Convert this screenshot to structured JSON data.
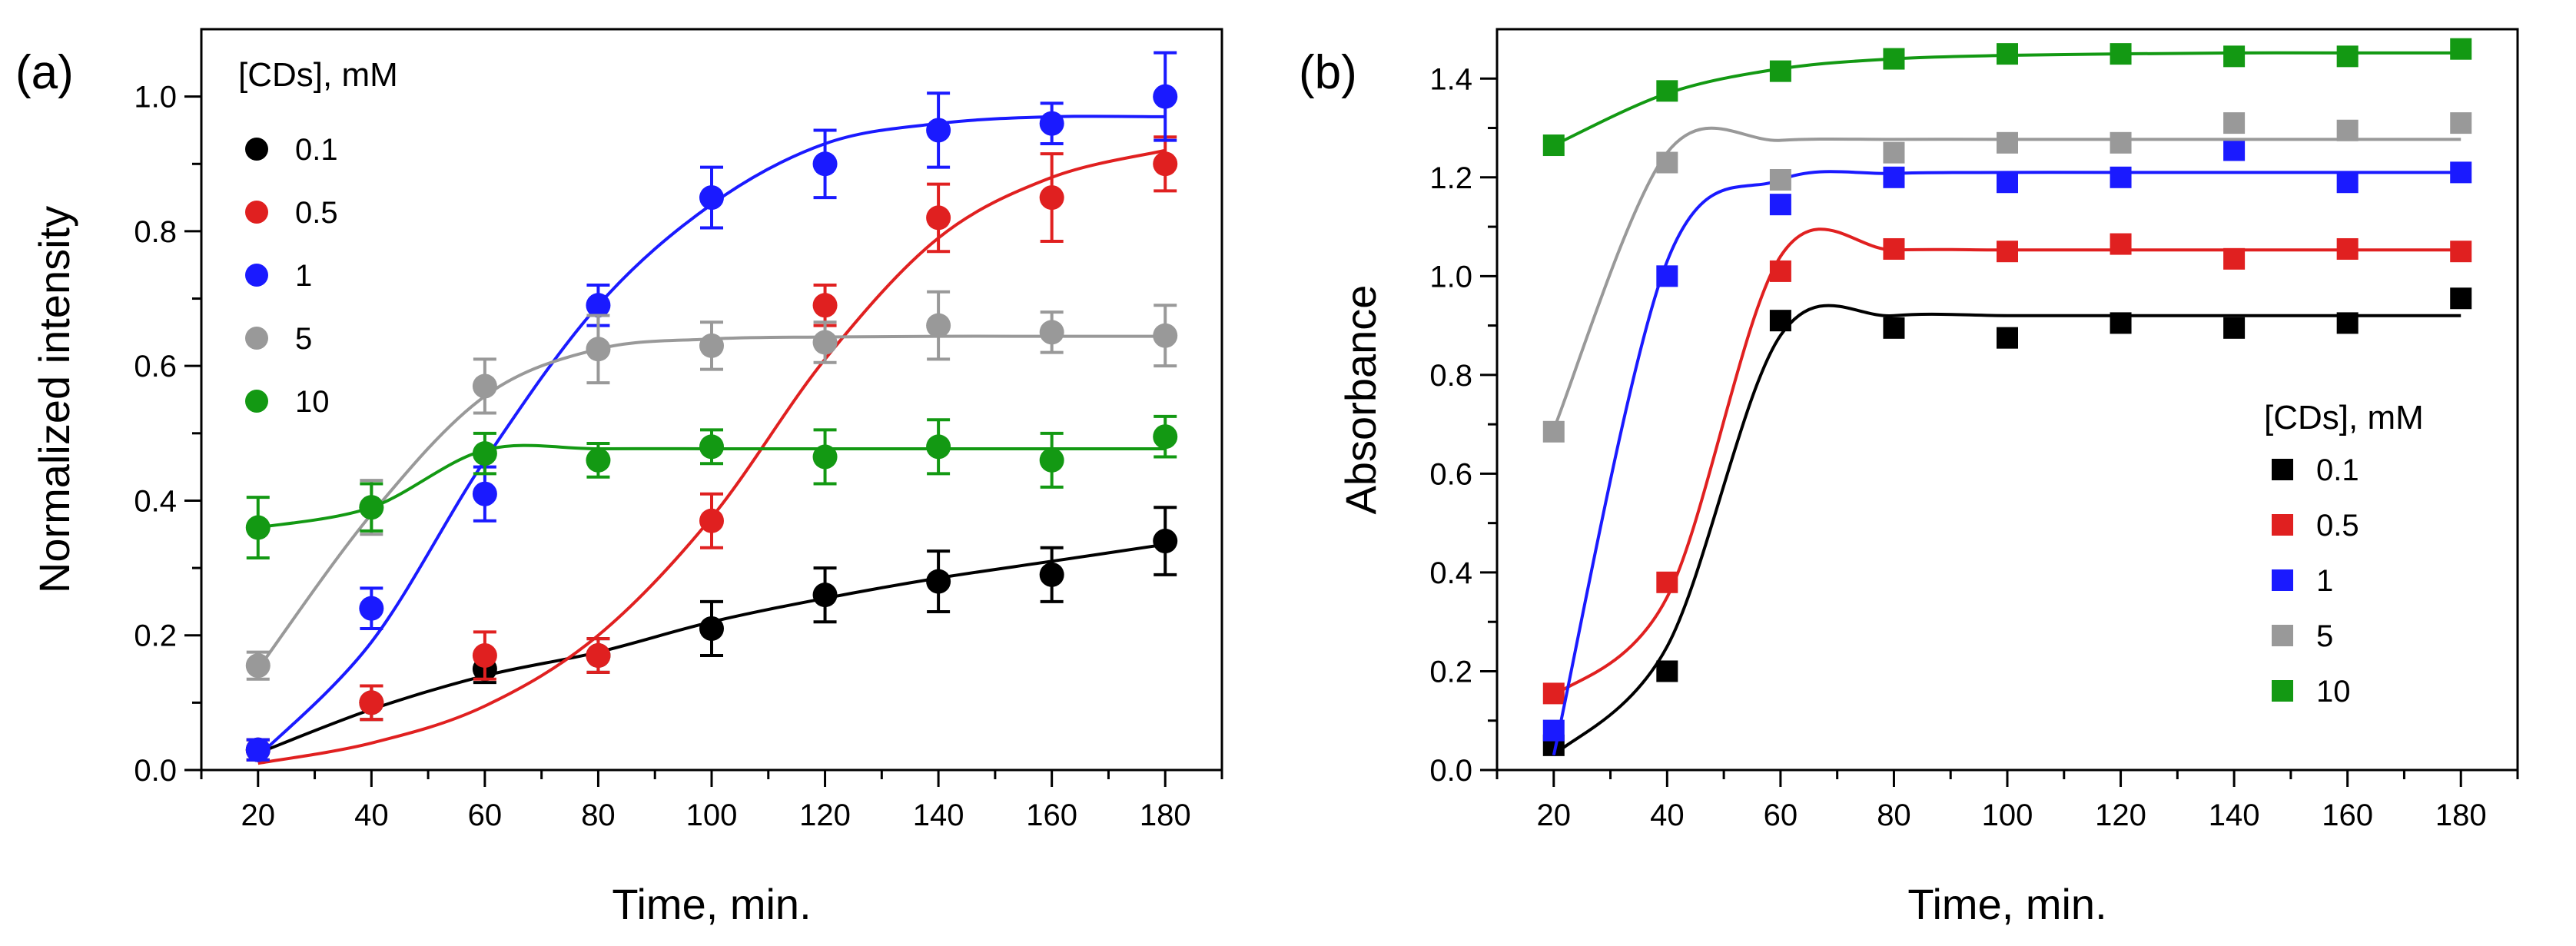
{
  "chart_data": [
    {
      "type": "scatter",
      "panel_label": "(a)",
      "xlabel": "Time, min.",
      "ylabel": "Normalized intensity",
      "xlim": [
        10,
        190
      ],
      "ylim": [
        0,
        1.1
      ],
      "xticks": [
        20,
        40,
        60,
        80,
        100,
        120,
        140,
        160,
        180
      ],
      "xtick_labels": [
        "20",
        "40",
        "60",
        "80",
        "100",
        "120",
        "140",
        "160",
        "180"
      ],
      "yticks": [
        0,
        0.2,
        0.4,
        0.6,
        0.8,
        1.0
      ],
      "ytick_labels": [
        "0.0",
        "0.2",
        "0.4",
        "0.6",
        "0.8",
        "1.0"
      ],
      "marker": "circle",
      "has_error_bars": true,
      "has_fit_lines": true,
      "legend_title": "[CDs], mM",
      "legend_position": "top-left",
      "x": [
        20,
        40,
        60,
        80,
        100,
        120,
        140,
        160,
        180
      ],
      "series": [
        {
          "name": "0.1",
          "color": "#000000",
          "values": [
            0.03,
            0.1,
            0.15,
            0.17,
            0.21,
            0.26,
            0.28,
            0.29,
            0.34
          ],
          "errors": [
            0.015,
            0.025,
            0.02,
            0.025,
            0.04,
            0.04,
            0.045,
            0.04,
            0.05
          ],
          "fit": [
            0.025,
            0.09,
            0.14,
            0.175,
            0.22,
            0.255,
            0.285,
            0.31,
            0.335
          ]
        },
        {
          "name": "0.5",
          "color": "#e02020",
          "values": [
            0.03,
            0.1,
            0.17,
            0.17,
            0.37,
            0.69,
            0.82,
            0.85,
            0.9
          ],
          "errors": [
            0.015,
            0.025,
            0.035,
            0.025,
            0.04,
            0.03,
            0.05,
            0.065,
            0.04
          ],
          "fit": [
            0.01,
            0.04,
            0.095,
            0.2,
            0.375,
            0.61,
            0.79,
            0.88,
            0.92
          ]
        },
        {
          "name": "1",
          "color": "#1a1aff",
          "values": [
            0.03,
            0.24,
            0.41,
            0.69,
            0.85,
            0.9,
            0.95,
            0.96,
            1.0
          ],
          "errors": [
            0.015,
            0.03,
            0.04,
            0.03,
            0.045,
            0.05,
            0.055,
            0.03,
            0.065
          ],
          "fit": [
            0.02,
            0.19,
            0.46,
            0.69,
            0.84,
            0.93,
            0.96,
            0.97,
            0.97
          ]
        },
        {
          "name": "5",
          "color": "#999999",
          "values": [
            0.155,
            0.39,
            0.57,
            0.625,
            0.63,
            0.635,
            0.66,
            0.65,
            0.645
          ],
          "errors": [
            0.02,
            0.04,
            0.04,
            0.05,
            0.035,
            0.03,
            0.05,
            0.03,
            0.045
          ],
          "fit": [
            0.15,
            0.38,
            0.555,
            0.625,
            0.64,
            0.643,
            0.644,
            0.644,
            0.644
          ]
        },
        {
          "name": "10",
          "color": "#139913",
          "values": [
            0.36,
            0.39,
            0.47,
            0.46,
            0.48,
            0.465,
            0.48,
            0.46,
            0.495
          ],
          "errors": [
            0.045,
            0.035,
            0.03,
            0.025,
            0.025,
            0.04,
            0.04,
            0.04,
            0.03
          ],
          "fit": [
            0.36,
            0.39,
            0.475,
            0.477,
            0.477,
            0.477,
            0.477,
            0.477,
            0.477
          ]
        }
      ]
    },
    {
      "type": "scatter",
      "panel_label": "(b)",
      "xlabel": "Time, min.",
      "ylabel": "Absorbance",
      "xlim": [
        10,
        190
      ],
      "ylim": [
        0,
        1.5
      ],
      "xticks": [
        20,
        40,
        60,
        80,
        100,
        120,
        140,
        160,
        180
      ],
      "xtick_labels": [
        "20",
        "40",
        "60",
        "80",
        "100",
        "120",
        "140",
        "160",
        "180"
      ],
      "yticks": [
        0,
        0.2,
        0.4,
        0.6,
        0.8,
        1.0,
        1.2,
        1.4
      ],
      "ytick_labels": [
        "0.0",
        "0.2",
        "0.4",
        "0.6",
        "0.8",
        "1.0",
        "1.2",
        "1.4"
      ],
      "marker": "square",
      "has_error_bars": false,
      "has_fit_lines": true,
      "legend_title": "[CDs], mM",
      "legend_position": "bottom-right",
      "x": [
        20,
        40,
        60,
        80,
        100,
        120,
        140,
        160,
        180
      ],
      "series": [
        {
          "name": "0.1",
          "color": "#000000",
          "values": [
            0.05,
            0.2,
            0.91,
            0.895,
            0.875,
            0.905,
            0.895,
            0.905,
            0.955
          ],
          "fit": [
            0.03,
            0.25,
            0.88,
            0.92,
            0.92,
            0.92,
            0.92,
            0.92,
            0.92
          ]
        },
        {
          "name": "0.5",
          "color": "#e02020",
          "values": [
            0.155,
            0.38,
            1.01,
            1.055,
            1.05,
            1.065,
            1.035,
            1.055,
            1.05
          ],
          "fit": [
            0.15,
            0.35,
            1.04,
            1.053,
            1.053,
            1.053,
            1.053,
            1.053,
            1.053
          ]
        },
        {
          "name": "1",
          "color": "#1a1aff",
          "values": [
            0.08,
            1.0,
            1.145,
            1.2,
            1.19,
            1.2,
            1.255,
            1.19,
            1.21
          ],
          "fit": [
            0.03,
            1.03,
            1.195,
            1.208,
            1.21,
            1.21,
            1.21,
            1.21,
            1.21
          ]
        },
        {
          "name": "5",
          "color": "#999999",
          "values": [
            0.685,
            1.23,
            1.195,
            1.25,
            1.27,
            1.27,
            1.31,
            1.295,
            1.31
          ],
          "fit": [
            0.69,
            1.25,
            1.275,
            1.277,
            1.277,
            1.277,
            1.277,
            1.277,
            1.277
          ]
        },
        {
          "name": "10",
          "color": "#139913",
          "values": [
            1.265,
            1.375,
            1.415,
            1.44,
            1.45,
            1.45,
            1.445,
            1.445,
            1.46
          ],
          "fit": [
            1.265,
            1.37,
            1.42,
            1.44,
            1.447,
            1.45,
            1.452,
            1.452,
            1.452
          ]
        }
      ]
    }
  ]
}
